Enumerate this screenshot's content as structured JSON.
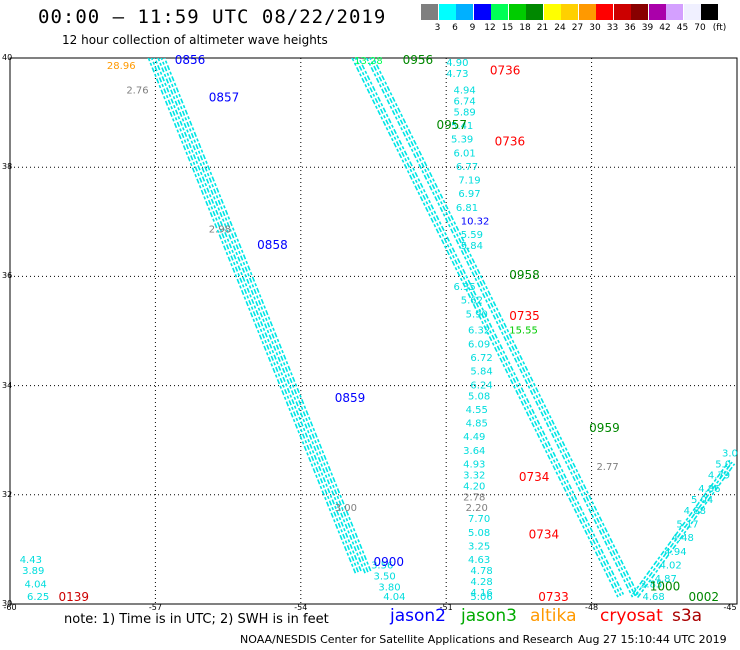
{
  "header": {
    "title": "00:00 – 11:59 UTC 08/22/2019",
    "subtitle": "12 hour collection of altimeter wave heights"
  },
  "color_scale": {
    "unit": "(ft)",
    "bins": [
      {
        "label": "3",
        "color": "#7f7f7f"
      },
      {
        "label": "6",
        "color": "#00ffff"
      },
      {
        "label": "9",
        "color": "#00b0ff"
      },
      {
        "label": "12",
        "color": "#0000ff"
      },
      {
        "label": "15",
        "color": "#00ff55"
      },
      {
        "label": "18",
        "color": "#00cc00"
      },
      {
        "label": "21",
        "color": "#008800"
      },
      {
        "label": "24",
        "color": "#ffff00"
      },
      {
        "label": "27",
        "color": "#ffd000"
      },
      {
        "label": "30",
        "color": "#ff9900"
      },
      {
        "label": "33",
        "color": "#ff0000"
      },
      {
        "label": "36",
        "color": "#cc0000"
      },
      {
        "label": "39",
        "color": "#880000"
      },
      {
        "label": "42",
        "color": "#aa00aa"
      },
      {
        "label": "45",
        "color": "#d4a0ff"
      },
      {
        "label": "70",
        "color": "#f0f0ff"
      },
      {
        "label": "",
        "color": "#000000"
      }
    ]
  },
  "map": {
    "lon_range": [
      -60,
      -45
    ],
    "lat_range": [
      30,
      40
    ],
    "lon_ticks": [
      "-60",
      "-57",
      "-54",
      "-51",
      "-48",
      "-45"
    ],
    "lat_ticks": [
      "40",
      "38",
      "36",
      "34",
      "32",
      "30"
    ]
  },
  "tracks": [
    {
      "satellite": "jason2",
      "start": [
        -57.1,
        40.05
      ],
      "end": [
        -52.8,
        30.55
      ],
      "color": "#00e5e5"
    },
    {
      "satellite": "jason2",
      "start": [
        -56.9,
        40.05
      ],
      "end": [
        -52.6,
        30.55
      ],
      "color": "#00e5e5"
    },
    {
      "satellite": "jason3",
      "start": [
        -52.9,
        40.05
      ],
      "end": [
        -47.4,
        30.15
      ],
      "color": "#00e5e5"
    },
    {
      "satellite": "jason3",
      "start": [
        -52.6,
        40.05
      ],
      "end": [
        -47.1,
        30.15
      ],
      "color": "#00e5e5"
    },
    {
      "satellite": "jason3",
      "start": [
        -47.1,
        30.15
      ],
      "end": [
        -45.1,
        32.6
      ],
      "color": "#00e5e5"
    }
  ],
  "time_labels": [
    {
      "text": "0856",
      "lon": -56.6,
      "lat": 39.9,
      "color": "#0000ff"
    },
    {
      "text": "0857",
      "lon": -55.9,
      "lat": 39.2,
      "color": "#0000ff"
    },
    {
      "text": "0858",
      "lon": -54.9,
      "lat": 36.5,
      "color": "#0000ff"
    },
    {
      "text": "0859",
      "lon": -53.3,
      "lat": 33.7,
      "color": "#0000ff"
    },
    {
      "text": "0900",
      "lon": -52.5,
      "lat": 30.7,
      "color": "#0000ff"
    },
    {
      "text": "0956",
      "lon": -51.9,
      "lat": 39.95,
      "color": "#008800"
    },
    {
      "text": "0957",
      "lon": -51.2,
      "lat": 38.7,
      "color": "#008800"
    },
    {
      "text": "0958",
      "lon": -49.7,
      "lat": 35.95,
      "color": "#008800"
    },
    {
      "text": "0959",
      "lon": -48.05,
      "lat": 33.15,
      "color": "#008800"
    },
    {
      "text": "1000",
      "lon": -46.8,
      "lat": 30.25,
      "color": "#008800"
    },
    {
      "text": "0002",
      "lon": -46.0,
      "lat": 30.05,
      "color": "#008800"
    },
    {
      "text": "0736",
      "lon": -50.1,
      "lat": 39.7,
      "color": "#ff0000"
    },
    {
      "text": "0736",
      "lon": -50.0,
      "lat": 38.4,
      "color": "#ff0000"
    },
    {
      "text": "0735",
      "lon": -49.7,
      "lat": 35.2,
      "color": "#ff0000"
    },
    {
      "text": "0734",
      "lon": -49.5,
      "lat": 32.25,
      "color": "#ff0000"
    },
    {
      "text": "0734",
      "lon": -49.3,
      "lat": 31.2,
      "color": "#ff0000"
    },
    {
      "text": "0733",
      "lon": -49.1,
      "lat": 30.0,
      "color": "#ff0000"
    },
    {
      "text": "0139",
      "lon": -59.0,
      "lat": 30.05,
      "color": "#cc0000"
    }
  ],
  "swh_values": [
    {
      "text": "4.90",
      "lon": -51.0,
      "lat": 39.85,
      "color": "#00dddd"
    },
    {
      "text": "4.73",
      "lon": -51.0,
      "lat": 39.65,
      "color": "#00dddd"
    },
    {
      "text": "4.94",
      "lon": -50.85,
      "lat": 39.35,
      "color": "#00dddd"
    },
    {
      "text": "6.74",
      "lon": -50.85,
      "lat": 39.15,
      "color": "#00dddd"
    },
    {
      "text": "5.89",
      "lon": -50.85,
      "lat": 38.95,
      "color": "#00dddd"
    },
    {
      "text": "5.41",
      "lon": -50.9,
      "lat": 38.7,
      "color": "#00dddd"
    },
    {
      "text": "5.39",
      "lon": -50.9,
      "lat": 38.45,
      "color": "#00dddd"
    },
    {
      "text": "6.01",
      "lon": -50.85,
      "lat": 38.2,
      "color": "#00dddd"
    },
    {
      "text": "6.77",
      "lon": -50.8,
      "lat": 37.95,
      "color": "#00dddd"
    },
    {
      "text": "7.19",
      "lon": -50.75,
      "lat": 37.7,
      "color": "#00dddd"
    },
    {
      "text": "6.97",
      "lon": -50.75,
      "lat": 37.45,
      "color": "#00dddd"
    },
    {
      "text": "6.81",
      "lon": -50.8,
      "lat": 37.2,
      "color": "#00dddd"
    },
    {
      "text": "10.32",
      "lon": -50.7,
      "lat": 36.95,
      "color": "#0000ff"
    },
    {
      "text": "5.59",
      "lon": -50.7,
      "lat": 36.7,
      "color": "#00dddd"
    },
    {
      "text": "5.84",
      "lon": -50.7,
      "lat": 36.5,
      "color": "#00dddd"
    },
    {
      "text": "6.35",
      "lon": -50.85,
      "lat": 35.75,
      "color": "#00dddd"
    },
    {
      "text": "5.62",
      "lon": -50.7,
      "lat": 35.5,
      "color": "#00dddd"
    },
    {
      "text": "5.90",
      "lon": -50.6,
      "lat": 35.25,
      "color": "#00dddd"
    },
    {
      "text": "6.32",
      "lon": -50.55,
      "lat": 34.95,
      "color": "#00dddd"
    },
    {
      "text": "6.09",
      "lon": -50.55,
      "lat": 34.7,
      "color": "#00dddd"
    },
    {
      "text": "6.72",
      "lon": -50.5,
      "lat": 34.45,
      "color": "#00dddd"
    },
    {
      "text": "5.84",
      "lon": -50.5,
      "lat": 34.2,
      "color": "#00dddd"
    },
    {
      "text": "6.24",
      "lon": -50.5,
      "lat": 33.95,
      "color": "#00dddd"
    },
    {
      "text": "5.08",
      "lon": -50.55,
      "lat": 33.75,
      "color": "#00dddd"
    },
    {
      "text": "4.55",
      "lon": -50.6,
      "lat": 33.5,
      "color": "#00dddd"
    },
    {
      "text": "4.85",
      "lon": -50.6,
      "lat": 33.25,
      "color": "#00dddd"
    },
    {
      "text": "4.49",
      "lon": -50.65,
      "lat": 33.0,
      "color": "#00dddd"
    },
    {
      "text": "3.64",
      "lon": -50.65,
      "lat": 32.75,
      "color": "#00dddd"
    },
    {
      "text": "4.93",
      "lon": -50.65,
      "lat": 32.5,
      "color": "#00dddd"
    },
    {
      "text": "3.32",
      "lon": -50.65,
      "lat": 32.3,
      "color": "#00dddd"
    },
    {
      "text": "4.20",
      "lon": -50.65,
      "lat": 32.1,
      "color": "#00dddd"
    },
    {
      "text": "2.78",
      "lon": -50.65,
      "lat": 31.9,
      "color": "#7f7f7f"
    },
    {
      "text": "2.20",
      "lon": -50.6,
      "lat": 31.7,
      "color": "#7f7f7f"
    },
    {
      "text": "7.70",
      "lon": -50.55,
      "lat": 31.5,
      "color": "#00dddd"
    },
    {
      "text": "5.08",
      "lon": -50.55,
      "lat": 31.25,
      "color": "#00dddd"
    },
    {
      "text": "3.25",
      "lon": -50.55,
      "lat": 31.0,
      "color": "#00dddd"
    },
    {
      "text": "4.63",
      "lon": -50.55,
      "lat": 30.75,
      "color": "#00dddd"
    },
    {
      "text": "4.78",
      "lon": -50.5,
      "lat": 30.55,
      "color": "#00dddd"
    },
    {
      "text": "4.28",
      "lon": -50.5,
      "lat": 30.35,
      "color": "#00dddd"
    },
    {
      "text": "4.16",
      "lon": -50.5,
      "lat": 30.15,
      "color": "#00dddd"
    },
    {
      "text": "5.06",
      "lon": -50.5,
      "lat": 29.95,
      "color": "#00dddd"
    },
    {
      "text": "15.55",
      "lon": -49.7,
      "lat": 34.95,
      "color": "#00cc00"
    },
    {
      "text": "13.28",
      "lon": -52.9,
      "lat": 39.95,
      "color": "#00ff55"
    },
    {
      "text": "3.56",
      "lon": -52.55,
      "lat": 30.65,
      "color": "#00dddd"
    },
    {
      "text": "3.50",
      "lon": -52.5,
      "lat": 30.45,
      "color": "#00dddd"
    },
    {
      "text": "3.80",
      "lon": -52.4,
      "lat": 30.25,
      "color": "#00dddd"
    },
    {
      "text": "4.04",
      "lon": -52.3,
      "lat": 30.05,
      "color": "#00dddd"
    },
    {
      "text": "4.43",
      "lon": -59.8,
      "lat": 30.75,
      "color": "#00dddd"
    },
    {
      "text": "3.89",
      "lon": -59.75,
      "lat": 30.55,
      "color": "#00dddd"
    },
    {
      "text": "4.04",
      "lon": -59.7,
      "lat": 30.3,
      "color": "#00dddd"
    },
    {
      "text": "6.25",
      "lon": -59.65,
      "lat": 30.05,
      "color": "#00dddd"
    },
    {
      "text": "3.85",
      "lon": -47.0,
      "lat": 30.3,
      "color": "#00dddd"
    },
    {
      "text": "4.68",
      "lon": -46.95,
      "lat": 30.05,
      "color": "#00dddd"
    },
    {
      "text": "4.87",
      "lon": -46.7,
      "lat": 30.4,
      "color": "#00dddd"
    },
    {
      "text": "4.02",
      "lon": -46.6,
      "lat": 30.65,
      "color": "#00dddd"
    },
    {
      "text": "4.94",
      "lon": -46.5,
      "lat": 30.9,
      "color": "#00dddd"
    },
    {
      "text": "4.48",
      "lon": -46.35,
      "lat": 31.15,
      "color": "#00dddd"
    },
    {
      "text": "5.17",
      "lon": -46.25,
      "lat": 31.4,
      "color": "#00dddd"
    },
    {
      "text": "4.88",
      "lon": -46.1,
      "lat": 31.65,
      "color": "#00dddd"
    },
    {
      "text": "5.04",
      "lon": -45.95,
      "lat": 31.85,
      "color": "#00dddd"
    },
    {
      "text": "4.86",
      "lon": -45.8,
      "lat": 32.05,
      "color": "#00dddd"
    },
    {
      "text": "4.79",
      "lon": -45.6,
      "lat": 32.3,
      "color": "#00dddd"
    },
    {
      "text": "5.0",
      "lon": -45.45,
      "lat": 32.5,
      "color": "#00dddd"
    },
    {
      "text": "3.0",
      "lon": -45.3,
      "lat": 32.7,
      "color": "#00dddd"
    },
    {
      "text": "2.77",
      "lon": -47.9,
      "lat": 32.45,
      "color": "#7f7f7f"
    },
    {
      "text": "2.98",
      "lon": -55.9,
      "lat": 36.8,
      "color": "#7f7f7f"
    },
    {
      "text": "2.76",
      "lon": -57.6,
      "lat": 39.35,
      "color": "#7f7f7f"
    },
    {
      "text": "3.00",
      "lon": -53.3,
      "lat": 31.7,
      "color": "#7f7f7f"
    },
    {
      "text": "28.96",
      "lon": -58.0,
      "lat": 39.8,
      "color": "#ff9900"
    }
  ],
  "legend": {
    "note": "note: 1) Time is in UTC; 2) SWH is in feet",
    "satellites": [
      {
        "name": "jason2",
        "color": "#0000ff"
      },
      {
        "name": "jason3",
        "color": "#00aa00"
      },
      {
        "name": "altika",
        "color": "#ff9900"
      },
      {
        "name": "cryosat",
        "color": "#ff0000"
      },
      {
        "name": "s3a",
        "color": "#aa0000"
      }
    ]
  },
  "footer": {
    "credit": "NOAA/NESDIS Center for Satellite Applications and Research",
    "timestamp": "Aug 27 15:10:44 UTC 2019"
  }
}
